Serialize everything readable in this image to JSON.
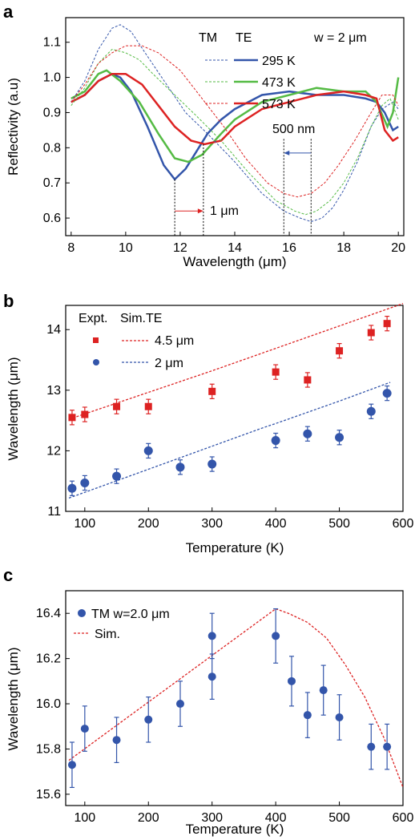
{
  "panels": [
    {
      "letter": "a"
    },
    {
      "letter": "b"
    },
    {
      "letter": "c"
    }
  ],
  "chart_data": [
    {
      "type": "line",
      "panel": "a",
      "xlabel": "Wavelength (μm)",
      "ylabel": "Reflectivity (a.u)",
      "xlim": [
        7.8,
        20.2
      ],
      "ylim": [
        0.55,
        1.17
      ],
      "xticks": [
        "8",
        "10",
        "12",
        "14",
        "16",
        "18",
        "20"
      ],
      "yticks": [
        "0.6",
        "0.7",
        "0.8",
        "0.9",
        "1.0",
        "1.1"
      ],
      "legend_headers": [
        "TM",
        "TE"
      ],
      "legend_placement": "top-right",
      "annotation_width": "w = 2 μm",
      "annotation_shift_tm": "1 μm",
      "annotation_shift_te": "500 nm",
      "series": [
        {
          "name": "295 K",
          "color": "#3355aa",
          "mode": "TM",
          "x": [
            8,
            8.5,
            9,
            9.5,
            9.8,
            10.2,
            10.8,
            11.4,
            11.8,
            12.2,
            12.6,
            13,
            13.5,
            14,
            15,
            16,
            17,
            18,
            18.8,
            19.2,
            19.5,
            19.8,
            20
          ],
          "y": [
            0.93,
            0.95,
            0.99,
            1.01,
            1.0,
            0.96,
            0.86,
            0.75,
            0.71,
            0.74,
            0.79,
            0.84,
            0.88,
            0.91,
            0.95,
            0.96,
            0.95,
            0.95,
            0.94,
            0.93,
            0.9,
            0.85,
            0.86
          ]
        },
        {
          "name": "473 K",
          "color": "#55bb44",
          "mode": "TM",
          "x": [
            8,
            8.5,
            9,
            9.3,
            9.8,
            10.5,
            11.2,
            11.8,
            12.3,
            12.8,
            13.5,
            14,
            15,
            16,
            17,
            18,
            18.8,
            19.2,
            19.6,
            19.8,
            20
          ],
          "y": [
            0.94,
            0.96,
            1.01,
            1.02,
            0.99,
            0.93,
            0.84,
            0.77,
            0.76,
            0.78,
            0.84,
            0.88,
            0.93,
            0.95,
            0.97,
            0.96,
            0.96,
            0.93,
            0.86,
            0.9,
            1.0
          ]
        },
        {
          "name": "573 K",
          "color": "#dd2222",
          "mode": "TM",
          "x": [
            8,
            8.5,
            9,
            9.5,
            10,
            10.6,
            11.2,
            11.8,
            12.4,
            12.9,
            13.5,
            14,
            15,
            16,
            17,
            18,
            18.8,
            19.2,
            19.5,
            19.8,
            20
          ],
          "y": [
            0.93,
            0.95,
            0.99,
            1.01,
            1.01,
            0.98,
            0.92,
            0.86,
            0.82,
            0.81,
            0.82,
            0.86,
            0.91,
            0.93,
            0.95,
            0.96,
            0.95,
            0.94,
            0.85,
            0.82,
            0.83
          ]
        },
        {
          "name": "295 K",
          "color": "#3355aa",
          "mode": "TE",
          "x": [
            8,
            8.5,
            9,
            9.5,
            9.8,
            10.2,
            10.8,
            11.5,
            12.2,
            13,
            14,
            15,
            15.8,
            16.4,
            16.8,
            17.2,
            17.6,
            18,
            18.5,
            19,
            19.4,
            19.8,
            20
          ],
          "y": [
            0.93,
            0.99,
            1.08,
            1.14,
            1.15,
            1.13,
            1.06,
            0.98,
            0.9,
            0.84,
            0.76,
            0.67,
            0.62,
            0.6,
            0.59,
            0.6,
            0.63,
            0.68,
            0.76,
            0.86,
            0.91,
            0.93,
            0.91
          ]
        },
        {
          "name": "473 K",
          "color": "#55bb44",
          "mode": "TE",
          "x": [
            8,
            8.5,
            9,
            9.5,
            10,
            10.5,
            11,
            11.8,
            12.6,
            13.5,
            14.5,
            15.5,
            16.2,
            16.6,
            17,
            17.5,
            18,
            18.5,
            19,
            19.4,
            19.7,
            20
          ],
          "y": [
            0.92,
            0.97,
            1.04,
            1.08,
            1.07,
            1.05,
            1.01,
            0.95,
            0.89,
            0.82,
            0.73,
            0.65,
            0.62,
            0.61,
            0.62,
            0.65,
            0.7,
            0.77,
            0.86,
            0.92,
            0.94,
            0.88
          ]
        },
        {
          "name": "573 K",
          "color": "#dd2222",
          "mode": "TE",
          "x": [
            8,
            8.5,
            9,
            9.5,
            10,
            10.6,
            11.2,
            12,
            12.8,
            13.6,
            14.4,
            15.2,
            15.8,
            16.3,
            16.8,
            17.3,
            17.8,
            18.4,
            19,
            19.4,
            19.8,
            20
          ],
          "y": [
            0.93,
            0.98,
            1.04,
            1.07,
            1.09,
            1.09,
            1.07,
            1.02,
            0.94,
            0.86,
            0.77,
            0.7,
            0.67,
            0.66,
            0.67,
            0.7,
            0.75,
            0.82,
            0.9,
            0.95,
            0.95,
            0.92
          ]
        }
      ],
      "markers": [
        {
          "x": 11.8,
          "y_top": 0.71
        },
        {
          "x": 12.85,
          "y_top": 0.81
        },
        {
          "x": 15.8,
          "y_top": 0.825
        },
        {
          "x": 16.8,
          "y_top": 0.825
        }
      ]
    },
    {
      "type": "scatter",
      "panel": "b",
      "xlabel": "Temperature (K)",
      "ylabel": "Wavelength (μm)",
      "xlim": [
        70,
        600
      ],
      "ylim": [
        11,
        14.4
      ],
      "xticks": [
        "100",
        "200",
        "300",
        "400",
        "500",
        "600"
      ],
      "yticks": [
        "11",
        "12",
        "13",
        "14"
      ],
      "legend_headers": [
        "Expt.",
        "Sim.TE"
      ],
      "legend_placement": "top-left",
      "series": [
        {
          "name": "4.5 μm",
          "color": "#dd2222",
          "marker": "square",
          "x": [
            80,
            100,
            150,
            200,
            300,
            400,
            450,
            500,
            550,
            575
          ],
          "y": [
            12.55,
            12.6,
            12.73,
            12.73,
            12.98,
            13.3,
            13.17,
            13.65,
            13.95,
            14.1
          ],
          "err": [
            0.12,
            0.12,
            0.12,
            0.12,
            0.12,
            0.12,
            0.12,
            0.12,
            0.12,
            0.12
          ]
        },
        {
          "name": "2 μm",
          "color": "#3355aa",
          "marker": "circle",
          "x": [
            80,
            100,
            150,
            200,
            250,
            300,
            400,
            450,
            500,
            550,
            575
          ],
          "y": [
            11.38,
            11.47,
            11.58,
            12.0,
            11.73,
            11.78,
            12.17,
            12.28,
            12.22,
            12.65,
            12.95
          ],
          "err": [
            0.12,
            0.12,
            0.12,
            0.12,
            0.12,
            0.12,
            0.12,
            0.12,
            0.12,
            0.12,
            0.12
          ]
        }
      ],
      "sim_lines": [
        {
          "name": "4.5 μm",
          "color": "#dd2222",
          "x": [
            75,
            300,
            600
          ],
          "y": [
            12.52,
            13.32,
            14.43
          ]
        },
        {
          "name": "2 μm",
          "color": "#3355aa",
          "x": [
            75,
            380,
            400,
            500,
            580
          ],
          "y": [
            11.22,
            12.38,
            12.45,
            12.82,
            13.13
          ]
        }
      ]
    },
    {
      "type": "scatter",
      "panel": "c",
      "xlabel": "Temperature (K)",
      "ylabel": "Wavelength (μm)",
      "xlim": [
        70,
        600
      ],
      "ylim": [
        15.55,
        16.5
      ],
      "xticks": [
        "100",
        "200",
        "300",
        "400",
        "500",
        "600"
      ],
      "yticks": [
        "15.6",
        "15.8",
        "16.0",
        "16.2",
        "16.4"
      ],
      "legend_placement": "top-left",
      "series": [
        {
          "name": "TM w=2.0 μm",
          "color": "#3355aa",
          "marker": "circle",
          "x": [
            80,
            100,
            150,
            200,
            250,
            300,
            300,
            400,
            425,
            450,
            475,
            500,
            550,
            575
          ],
          "y": [
            15.73,
            15.89,
            15.84,
            15.93,
            16.0,
            16.3,
            16.12,
            16.3,
            16.1,
            15.95,
            16.06,
            15.94,
            15.81,
            15.81
          ],
          "err": [
            0.1,
            0.1,
            0.1,
            0.1,
            0.1,
            0.1,
            0.1,
            0.12,
            0.11,
            0.1,
            0.11,
            0.1,
            0.1,
            0.1
          ]
        }
      ],
      "sim_lines": [
        {
          "name": "Sim.",
          "color": "#dd2222",
          "x": [
            75,
            400,
            420,
            450,
            480,
            510,
            540,
            570,
            600
          ],
          "y": [
            15.75,
            16.42,
            16.4,
            16.36,
            16.29,
            16.17,
            16.03,
            15.85,
            15.63
          ]
        }
      ]
    }
  ]
}
